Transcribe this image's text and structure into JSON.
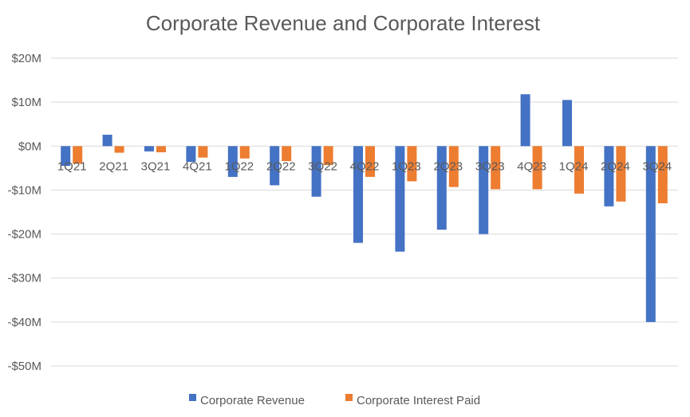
{
  "chart_data": {
    "type": "bar",
    "title": "Corporate Revenue and Corporate Interest",
    "xlabel": "",
    "ylabel": "",
    "ylim": [
      -50,
      20
    ],
    "yticks": [
      20,
      10,
      0,
      -10,
      -20,
      -30,
      -40,
      -50
    ],
    "ytick_labels": [
      "$20M",
      "$10M",
      "$0M",
      "-$10M",
      "-$20M",
      "-$30M",
      "-$40M",
      "-$50M"
    ],
    "categories": [
      "1Q21",
      "2Q21",
      "3Q21",
      "4Q21",
      "1Q22",
      "2Q22",
      "3Q22",
      "4Q22",
      "1Q23",
      "2Q23",
      "3Q23",
      "4Q23",
      "1Q24",
      "2Q24",
      "3Q24"
    ],
    "series": [
      {
        "name": "Corporate Revenue",
        "color": "#4472C4",
        "values": [
          -4.5,
          2.6,
          -1.2,
          -3.6,
          -7.0,
          -8.9,
          -11.5,
          -22.0,
          -24.0,
          -19.0,
          -20.0,
          11.8,
          10.5,
          -13.7,
          -40.0
        ]
      },
      {
        "name": "Corporate Interest Paid",
        "color": "#ED7D31",
        "values": [
          -4.0,
          -1.5,
          -1.4,
          -2.6,
          -2.8,
          -3.4,
          -4.3,
          -7.0,
          -8.0,
          -9.3,
          -9.8,
          -9.8,
          -10.8,
          -12.6,
          -13.0
        ]
      }
    ],
    "legend": "bottom",
    "grid": true
  }
}
